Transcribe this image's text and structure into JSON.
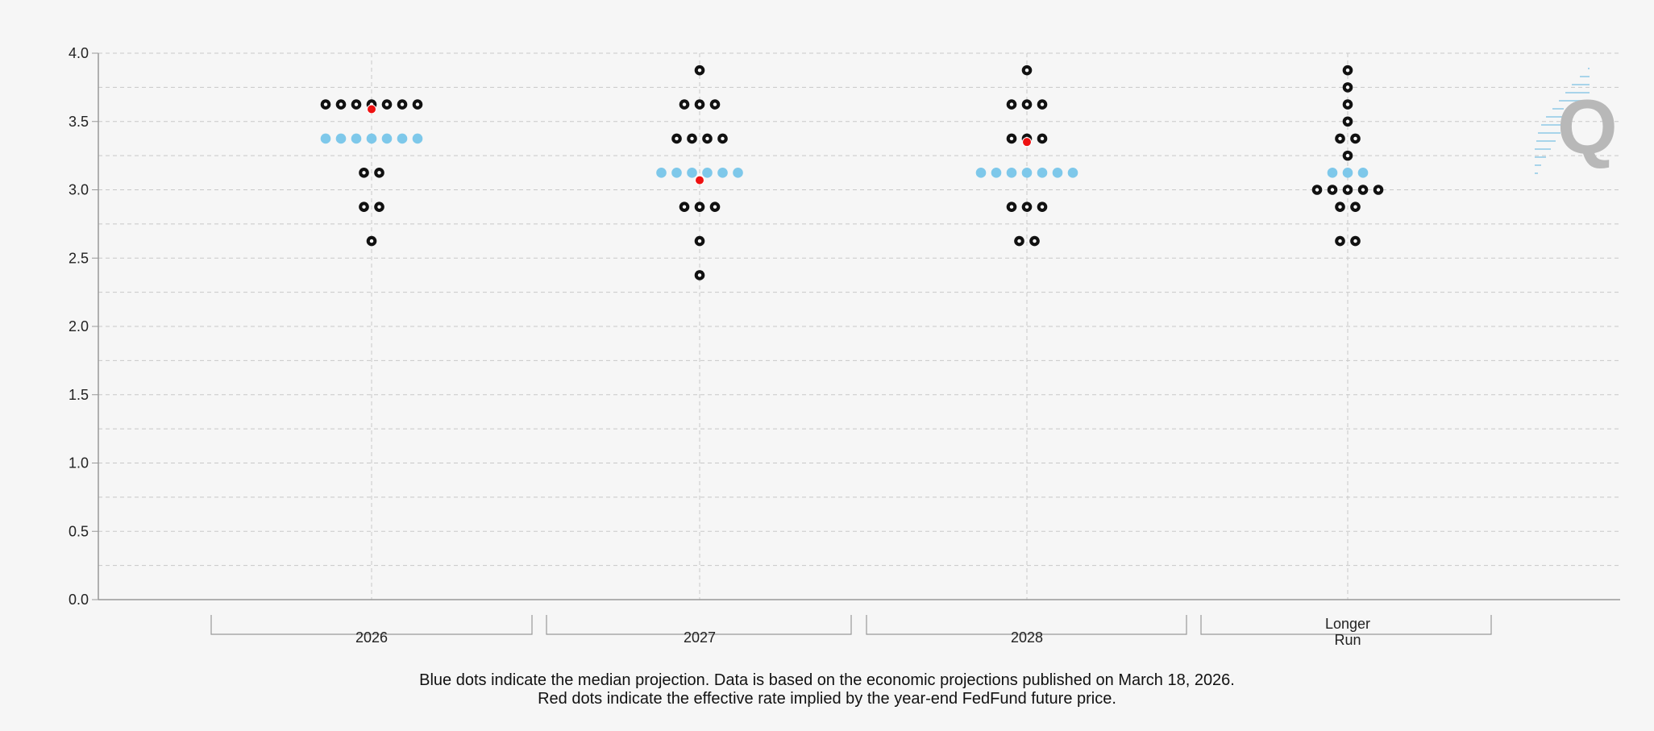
{
  "chart_data": {
    "type": "scatter",
    "ylim": [
      0,
      4
    ],
    "yticks": [
      "0.0",
      "0.5",
      "1.0",
      "1.5",
      "2.0",
      "2.5",
      "3.0",
      "3.5",
      "4.0"
    ],
    "grid": true,
    "categories": [
      {
        "label_lines": [
          "2026"
        ],
        "dots": [
          {
            "y": 3.625,
            "n": 7
          },
          {
            "y": 3.375,
            "n": 7,
            "median": true
          },
          {
            "y": 3.125,
            "n": 2
          },
          {
            "y": 2.875,
            "n": 2
          },
          {
            "y": 2.625,
            "n": 1
          }
        ],
        "implied": 3.59
      },
      {
        "label_lines": [
          "2027"
        ],
        "dots": [
          {
            "y": 3.875,
            "n": 1
          },
          {
            "y": 3.625,
            "n": 3
          },
          {
            "y": 3.375,
            "n": 4
          },
          {
            "y": 3.125,
            "n": 6,
            "median": true
          },
          {
            "y": 2.875,
            "n": 3
          },
          {
            "y": 2.625,
            "n": 1
          },
          {
            "y": 2.375,
            "n": 1
          }
        ],
        "implied": 3.07
      },
      {
        "label_lines": [
          "2028"
        ],
        "dots": [
          {
            "y": 3.875,
            "n": 1
          },
          {
            "y": 3.625,
            "n": 3
          },
          {
            "y": 3.375,
            "n": 3
          },
          {
            "y": 3.125,
            "n": 7,
            "median": true
          },
          {
            "y": 2.875,
            "n": 3
          },
          {
            "y": 2.625,
            "n": 2
          }
        ],
        "implied": 3.35
      },
      {
        "label_lines": [
          "Longer",
          "Run"
        ],
        "dots": [
          {
            "y": 3.875,
            "n": 1
          },
          {
            "y": 3.75,
            "n": 1
          },
          {
            "y": 3.625,
            "n": 1
          },
          {
            "y": 3.5,
            "n": 1
          },
          {
            "y": 3.375,
            "n": 2
          },
          {
            "y": 3.25,
            "n": 1
          },
          {
            "y": 3.125,
            "n": 3,
            "median": true
          },
          {
            "y": 3.0,
            "n": 5
          },
          {
            "y": 2.875,
            "n": 2
          },
          {
            "y": 2.625,
            "n": 2
          }
        ],
        "implied": null
      }
    ]
  },
  "legend": {
    "line1": "Blue dots indicate the median projection. Data is based on the economic projections published on March 18, 2026.",
    "line2": "Red dots indicate the effective rate implied by the year-end FedFund future price."
  },
  "colors": {
    "dot": "#111111",
    "median": "#7ec8ea",
    "implied": "#ee1111",
    "grid": "#c8c8c8",
    "axis": "#999999",
    "watermark": "#a8d4ea"
  },
  "watermark": {
    "letter": "Q"
  }
}
